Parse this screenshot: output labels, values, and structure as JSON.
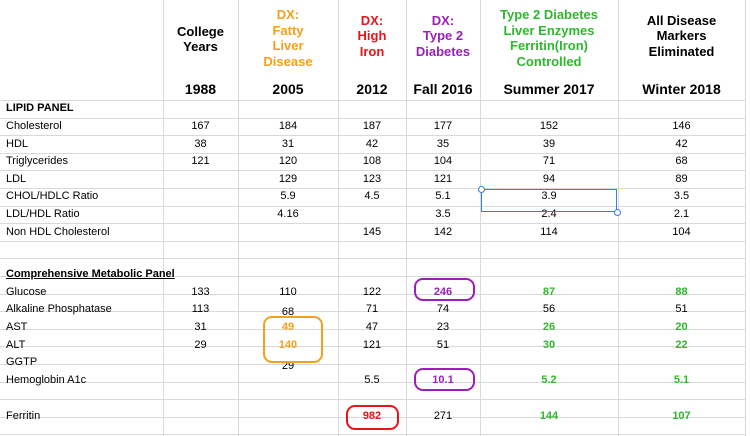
{
  "columns": [
    {
      "key": "college",
      "header": [
        "College",
        "Years"
      ],
      "year": "1988",
      "color": "#000000"
    },
    {
      "key": "y2005",
      "header": [
        "DX:",
        "Fatty",
        "Liver",
        "Disease"
      ],
      "year": "2005",
      "color": "#f5a01a"
    },
    {
      "key": "y2012",
      "header": [
        "DX:",
        "High",
        "Iron"
      ],
      "year": "2012",
      "color": "#e8141b"
    },
    {
      "key": "fall2016",
      "header": [
        "DX:",
        "Type 2",
        "Diabetes"
      ],
      "year": "Fall 2016",
      "color": "#9a1fb8"
    },
    {
      "key": "summer2017",
      "header": [
        "Type 2 Diabetes",
        "Liver Enzymes",
        "Ferritin(Iron)",
        "Controlled"
      ],
      "year": "Summer 2017",
      "color": "#2eb82e"
    },
    {
      "key": "winter2018",
      "header": [
        "All Disease",
        "Markers",
        "Eliminated"
      ],
      "year": "Winter 2018",
      "color": "#000000"
    }
  ],
  "sections": {
    "lipid": "LIPID PANEL",
    "metabolic": "Comprehensive Metabolic Panel"
  },
  "rows": [
    {
      "label": "Cholesterol",
      "values": [
        "167",
        "184",
        "187",
        "177",
        "152",
        "146"
      ]
    },
    {
      "label": "HDL",
      "values": [
        "38",
        "31",
        "42",
        "35",
        "39",
        "42"
      ]
    },
    {
      "label": "Triglycerides",
      "values": [
        "121",
        "120",
        "108",
        "104",
        "71",
        "68"
      ]
    },
    {
      "label": "LDL",
      "values": [
        "",
        "129",
        "123",
        "121",
        "94",
        "89"
      ]
    },
    {
      "label": "CHOL/HDLC Ratio",
      "values": [
        "",
        "5.9",
        "4.5",
        "5.1",
        "3.9",
        "3.5"
      ]
    },
    {
      "label": "LDL/HDL Ratio",
      "values": [
        "",
        "4.16",
        "",
        "3.5",
        "2.4",
        "2.1"
      ]
    },
    {
      "label": "Non HDL Cholesterol",
      "values": [
        "",
        "",
        "145",
        "142",
        "114",
        "104"
      ]
    },
    {
      "label": "Glucose",
      "values": [
        "133",
        "110",
        "122",
        "246",
        "87",
        "88"
      ]
    },
    {
      "label": "Alkaline Phosphatase",
      "values": [
        "113",
        "68",
        "71",
        "74",
        "56",
        "51"
      ]
    },
    {
      "label": "AST",
      "values": [
        "31",
        "49",
        "47",
        "23",
        "26",
        "20"
      ]
    },
    {
      "label": "ALT",
      "values": [
        "29",
        "140",
        "121",
        "51",
        "30",
        "22"
      ]
    },
    {
      "label": "GGTP",
      "values": [
        "",
        "29",
        "",
        "",
        "",
        ""
      ]
    },
    {
      "label": "Hemoglobin A1c",
      "values": [
        "",
        "",
        "5.5",
        "10.1",
        "5.2",
        "5.1"
      ]
    },
    {
      "label": "Ferritin",
      "values": [
        "",
        "",
        "982",
        "271",
        "144",
        "107"
      ]
    }
  ],
  "highlights": {
    "circle_color_orange": "#f5a01a",
    "circle_color_red": "#e8141b",
    "circle_color_purple": "#9a1fb8",
    "selection_color": "#3a7ee0"
  }
}
